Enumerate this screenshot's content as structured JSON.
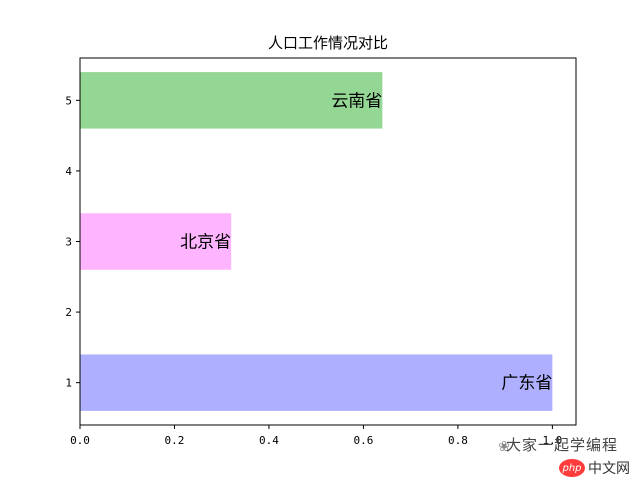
{
  "chart_data": {
    "type": "bar",
    "orientation": "horizontal",
    "title": "人口工作情况对比",
    "xlabel": "",
    "ylabel": "",
    "xlim": [
      0,
      1.05
    ],
    "ylim": [
      0.4,
      5.6
    ],
    "x_ticks": [
      "0.0",
      "0.2",
      "0.4",
      "0.6",
      "0.8",
      "1.0"
    ],
    "y_ticks": [
      "1",
      "2",
      "3",
      "4",
      "5"
    ],
    "grid": false,
    "bars": [
      {
        "y": 1,
        "value": 1.0,
        "label": "广东省",
        "color": "#aeb0ff"
      },
      {
        "y": 3,
        "value": 0.32,
        "label": "北京省",
        "color": "#ffb4ff"
      },
      {
        "y": 5,
        "value": 0.64,
        "label": "云南省",
        "color": "#94d694"
      }
    ]
  },
  "watermark": {
    "icon": "wechat-icon",
    "text": "大家一起学编程",
    "site_badge": "php",
    "site_text": "中文网"
  }
}
